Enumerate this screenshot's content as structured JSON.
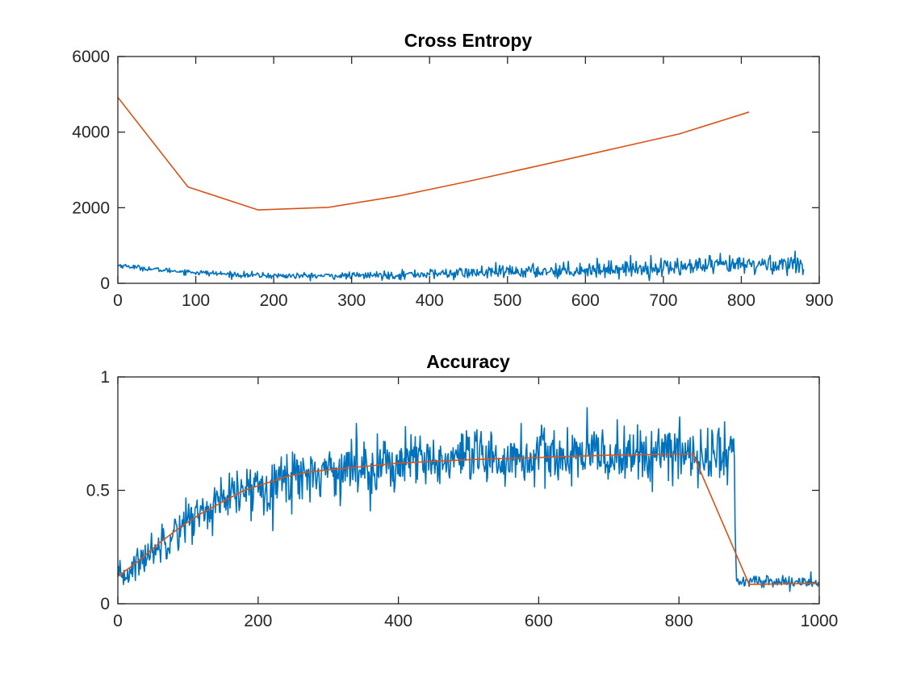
{
  "chart_data": [
    {
      "type": "line",
      "title": "Cross Entropy",
      "xlabel": "",
      "ylabel": "",
      "xlim": [
        0,
        900
      ],
      "ylim": [
        0,
        6000
      ],
      "xticks": [
        0,
        100,
        200,
        300,
        400,
        500,
        600,
        700,
        800,
        900
      ],
      "yticks": [
        0,
        2000,
        4000,
        6000
      ],
      "xtick_labels": [
        "0",
        "100",
        "200",
        "300",
        "400",
        "500",
        "600",
        "700",
        "800",
        "900"
      ],
      "ytick_labels": [
        "0",
        "2000",
        "4000",
        "6000"
      ],
      "grid": false,
      "legend": "none",
      "series": [
        {
          "color": "#0072BD",
          "style": "noisy",
          "trend": {
            "x": [
              0,
              50,
              100,
              150,
              200,
              250,
              300,
              350,
              400,
              450,
              500,
              550,
              600,
              650,
              700,
              750,
              800,
              850,
              880
            ],
            "y": [
              480,
              360,
              290,
              230,
              200,
              195,
              200,
              220,
              250,
              275,
              300,
              330,
              360,
              390,
              420,
              450,
              480,
              510,
              520
            ]
          },
          "noise": {
            "x": [
              0,
              300,
              500,
              700,
              880
            ],
            "y": [
              30,
              45,
              90,
              120,
              140
            ]
          },
          "n_points": 880
        },
        {
          "color": "#D95319",
          "style": "polyline",
          "x": [
            0,
            90,
            180,
            270,
            360,
            450,
            540,
            630,
            720,
            810
          ],
          "y": [
            4920,
            2550,
            1940,
            2010,
            2310,
            2700,
            3110,
            3530,
            3950,
            4530
          ]
        }
      ]
    },
    {
      "type": "line",
      "title": "Accuracy",
      "xlabel": "",
      "ylabel": "",
      "xlim": [
        0,
        1000
      ],
      "ylim": [
        0,
        1
      ],
      "xticks": [
        0,
        200,
        400,
        600,
        800,
        1000
      ],
      "yticks": [
        0,
        0.5,
        1
      ],
      "xtick_labels": [
        "0",
        "200",
        "400",
        "600",
        "800",
        "1000"
      ],
      "ytick_labels": [
        "0",
        "0.5",
        "1"
      ],
      "grid": false,
      "legend": "none",
      "series": [
        {
          "color": "#0072BD",
          "style": "noisy",
          "trend": {
            "x": [
              0,
              50,
              100,
              150,
              200,
              250,
              300,
              400,
              500,
              600,
              700,
              800,
              878,
              882,
              1000
            ],
            "y": [
              0.1,
              0.24,
              0.37,
              0.45,
              0.52,
              0.56,
              0.59,
              0.62,
              0.63,
              0.645,
              0.655,
              0.66,
              0.66,
              0.1,
              0.095
            ]
          },
          "noise": {
            "x": [
              0,
              200,
              400,
              878,
              882,
              1000
            ],
            "y": [
              0.035,
              0.06,
              0.065,
              0.065,
              0.015,
              0.015
            ]
          },
          "n_points": 1000
        },
        {
          "color": "#D95319",
          "style": "polyline",
          "x": [
            0,
            30,
            60,
            90,
            120,
            150,
            180,
            210,
            240,
            270,
            300,
            400,
            500,
            600,
            700,
            810,
            820,
            900,
            1000
          ],
          "y": [
            0.12,
            0.19,
            0.27,
            0.34,
            0.4,
            0.45,
            0.5,
            0.53,
            0.56,
            0.58,
            0.59,
            0.62,
            0.635,
            0.645,
            0.655,
            0.66,
            0.66,
            0.085,
            0.09
          ]
        }
      ]
    }
  ]
}
